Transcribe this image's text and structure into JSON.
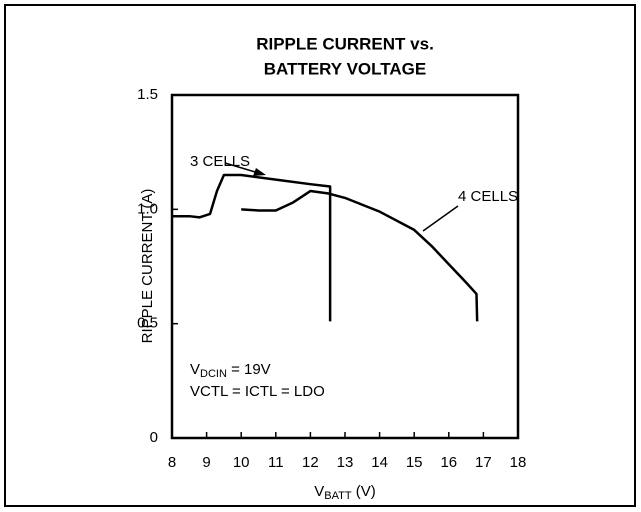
{
  "chart_data": {
    "type": "line",
    "title": [
      "RIPPLE CURRENT vs.",
      "BATTERY VOLTAGE"
    ],
    "xlabel": {
      "main": "V",
      "sub": "BATT",
      "rest": " (V)"
    },
    "ylabel": "RIPPLE CURRENT (A)",
    "annotations": [
      {
        "main": "V",
        "sub": "DCIN",
        "rest": " = 19V"
      },
      {
        "text": "VCTL = ICTL = LDO"
      }
    ],
    "series": [
      {
        "name": "3 CELLS",
        "color": "#000000",
        "x": [
          8,
          8.5,
          8.8,
          9.1,
          9.3,
          9.5,
          10,
          11,
          12,
          12.57,
          12.57
        ],
        "values": [
          0.97,
          0.97,
          0.965,
          0.98,
          1.08,
          1.15,
          1.15,
          1.13,
          1.11,
          1.1,
          0.51
        ]
      },
      {
        "name": "4 CELLS",
        "color": "#000000",
        "x": [
          10,
          10.5,
          11,
          11.5,
          12,
          12.5,
          13,
          14,
          15,
          15.5,
          16,
          16.5,
          16.8,
          16.82
        ],
        "values": [
          1.0,
          0.995,
          0.995,
          1.03,
          1.08,
          1.07,
          1.05,
          0.99,
          0.91,
          0.84,
          0.76,
          0.68,
          0.63,
          0.51
        ]
      }
    ],
    "xlim": [
      8,
      18
    ],
    "xticks": [
      8,
      9,
      10,
      11,
      12,
      13,
      14,
      15,
      16,
      17,
      18
    ],
    "ylim": [
      0,
      1.5
    ],
    "yticks": [
      0,
      0.5,
      {
        "value": 1,
        "label": "1.0"
      },
      1.5
    ],
    "grid": false
  }
}
